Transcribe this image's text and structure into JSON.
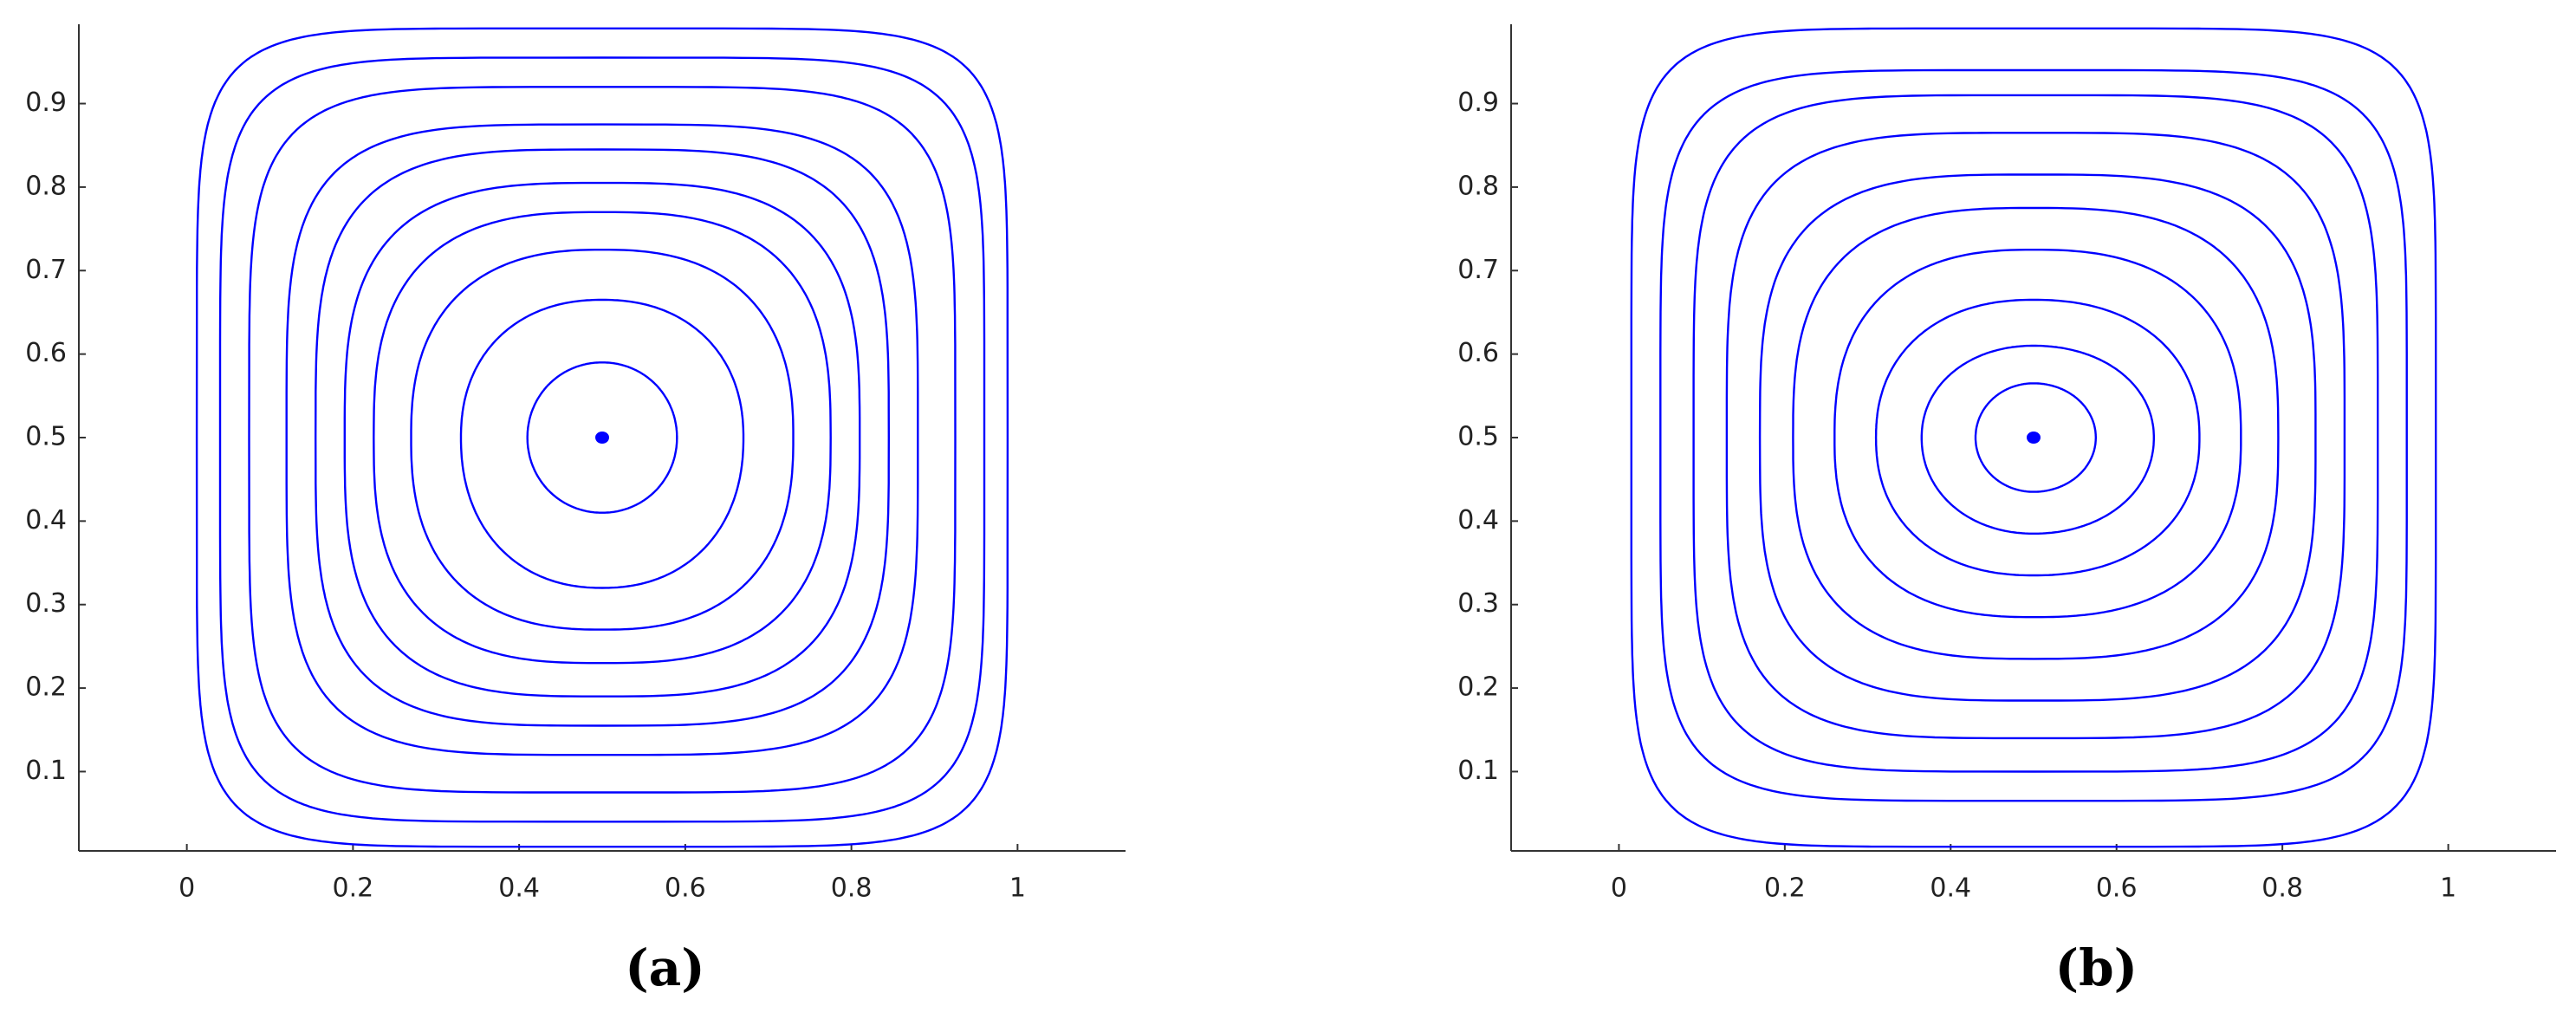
{
  "chart_data": [
    {
      "type": "contour",
      "label": "(a)",
      "color": "#0000ff",
      "xlim": [
        -0.13,
        1.13
      ],
      "ylim": [
        0.005,
        0.995
      ],
      "xticks": [
        0,
        0.2,
        0.4,
        0.6,
        0.8,
        1
      ],
      "yticks": [
        0.1,
        0.2,
        0.3,
        0.4,
        0.5,
        0.6,
        0.7,
        0.8,
        0.9
      ],
      "center": {
        "x": 0.5,
        "y": 0.5
      },
      "contours": [
        {
          "left": 0.012,
          "right": 0.988,
          "bottom": 0.01,
          "top": 0.99
        },
        {
          "left": 0.04,
          "right": 0.96,
          "bottom": 0.04,
          "top": 0.955
        },
        {
          "left": 0.075,
          "right": 0.925,
          "bottom": 0.075,
          "top": 0.92
        },
        {
          "left": 0.12,
          "right": 0.88,
          "bottom": 0.12,
          "top": 0.875
        },
        {
          "left": 0.155,
          "right": 0.845,
          "bottom": 0.155,
          "top": 0.845
        },
        {
          "left": 0.19,
          "right": 0.81,
          "bottom": 0.19,
          "top": 0.805
        },
        {
          "left": 0.225,
          "right": 0.775,
          "bottom": 0.23,
          "top": 0.77
        },
        {
          "left": 0.27,
          "right": 0.73,
          "bottom": 0.27,
          "top": 0.725
        },
        {
          "left": 0.33,
          "right": 0.67,
          "bottom": 0.32,
          "top": 0.665
        },
        {
          "left": 0.41,
          "right": 0.59,
          "bottom": 0.41,
          "top": 0.59
        }
      ]
    },
    {
      "type": "contour",
      "label": "(b)",
      "color": "#0000ff",
      "xlim": [
        -0.13,
        1.13
      ],
      "ylim": [
        0.005,
        0.995
      ],
      "xticks": [
        0,
        0.2,
        0.4,
        0.6,
        0.8,
        1
      ],
      "yticks": [
        0.1,
        0.2,
        0.3,
        0.4,
        0.5,
        0.6,
        0.7,
        0.8,
        0.9
      ],
      "center": {
        "x": 0.5,
        "y": 0.5
      },
      "contours": [
        {
          "left": 0.015,
          "right": 0.985,
          "bottom": 0.01,
          "top": 0.99
        },
        {
          "left": 0.05,
          "right": 0.95,
          "bottom": 0.065,
          "top": 0.94
        },
        {
          "left": 0.09,
          "right": 0.915,
          "bottom": 0.1,
          "top": 0.91
        },
        {
          "left": 0.13,
          "right": 0.875,
          "bottom": 0.14,
          "top": 0.865
        },
        {
          "left": 0.17,
          "right": 0.84,
          "bottom": 0.185,
          "top": 0.815
        },
        {
          "left": 0.21,
          "right": 0.795,
          "bottom": 0.235,
          "top": 0.775
        },
        {
          "left": 0.26,
          "right": 0.75,
          "bottom": 0.285,
          "top": 0.725
        },
        {
          "left": 0.31,
          "right": 0.7,
          "bottom": 0.335,
          "top": 0.665
        },
        {
          "left": 0.365,
          "right": 0.645,
          "bottom": 0.385,
          "top": 0.61
        },
        {
          "left": 0.43,
          "right": 0.575,
          "bottom": 0.435,
          "top": 0.565
        }
      ]
    }
  ]
}
